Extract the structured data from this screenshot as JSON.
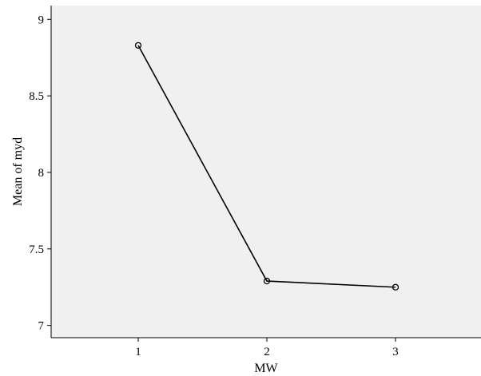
{
  "chart_data": {
    "type": "line",
    "xlabel": "MW",
    "ylabel": "Mean of myd",
    "categories": [
      "1",
      "2",
      "3"
    ],
    "series": [
      {
        "values": [
          8.83,
          7.29,
          7.25
        ]
      }
    ],
    "ylim": [
      6.92,
      9.09
    ],
    "y_ticks": [
      7,
      7.5,
      8,
      8.5,
      9
    ],
    "y_tick_labels": [
      "7",
      "7.5",
      "8",
      "8.5",
      "9"
    ],
    "grid": false,
    "marker": "open-circle",
    "colors": {
      "plot_background": "#f0f0f0",
      "line": "#000000",
      "axis": "#000000"
    }
  }
}
